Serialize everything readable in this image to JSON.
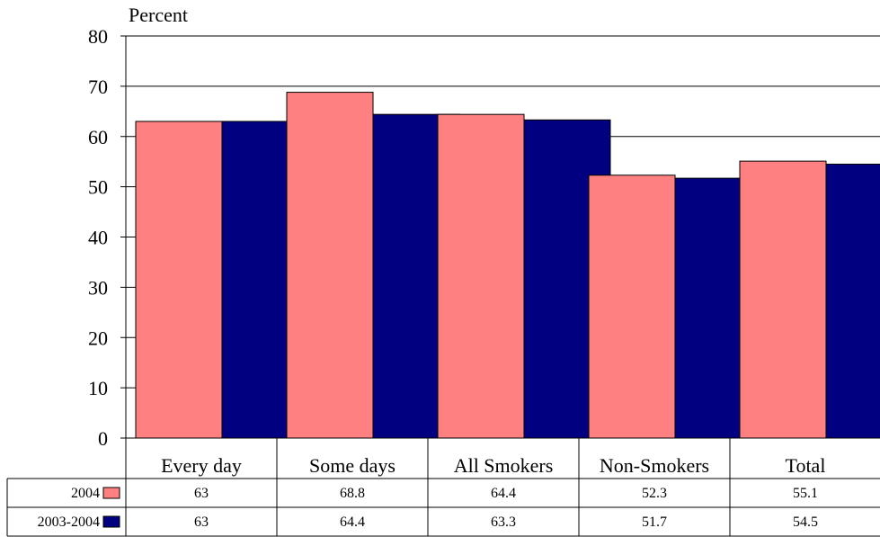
{
  "chart_data": {
    "type": "bar",
    "title": "",
    "ylabel": "Percent",
    "xlabel": "",
    "ylim": [
      0,
      80
    ],
    "yticks": [
      0,
      10,
      20,
      30,
      40,
      50,
      60,
      70,
      80
    ],
    "grid": true,
    "categories": [
      "Every day",
      "Some days",
      "All Smokers",
      "Non-Smokers",
      "Total"
    ],
    "series": [
      {
        "name": "2004",
        "color": "#ff8080",
        "values": [
          63,
          68.8,
          64.4,
          52.3,
          55.1
        ]
      },
      {
        "name": "2003-2004",
        "color": "#000080",
        "values": [
          63,
          64.4,
          63.3,
          51.7,
          54.5
        ]
      }
    ],
    "data_table": {
      "rows": [
        {
          "label": "2004",
          "cells": [
            "63",
            "68.8",
            "64.4",
            "52.3",
            "55.1"
          ]
        },
        {
          "label": "2003-2004",
          "cells": [
            "63",
            "64.4",
            "63.3",
            "51.7",
            "54.5"
          ]
        }
      ]
    }
  }
}
